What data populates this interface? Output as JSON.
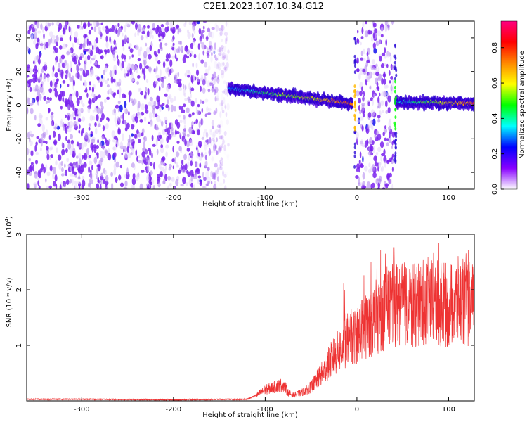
{
  "figure": {
    "title": "C2E1.2023.107.10.34.G12"
  },
  "colors": {
    "snr_line": "#ee3333",
    "spectrogram_low": "#7a22ee",
    "spectrogram_high": "#ee1111",
    "colorbar_stops": [
      "#ffffff",
      "#8800ff",
      "#0000ff",
      "#00ffff",
      "#00ff00",
      "#ffff00",
      "#ff8800",
      "#ff0000",
      "#ff0080"
    ]
  },
  "chart_data": [
    {
      "type": "heatmap",
      "title": "",
      "xlabel": "Height of straight line (km)",
      "ylabel": "Frequency (Hz)",
      "xlim": [
        -360,
        128
      ],
      "ylim": [
        -50,
        50
      ],
      "xticks": [
        -300,
        -200,
        -100,
        0,
        100
      ],
      "yticks": [
        -40,
        -20,
        0,
        20,
        40
      ],
      "colorbar": {
        "label": "Normalized spectral amplitude",
        "range": [
          0,
          0.95
        ],
        "ticks": [
          0.0,
          0.2,
          0.4,
          0.6,
          0.8
        ],
        "colormap": "rainbow"
      },
      "regions": [
        {
          "desc": "noise",
          "x_range": [
            -360,
            -140
          ],
          "freq_range": [
            -50,
            50
          ]
        },
        {
          "desc": "signal trace",
          "x_range": [
            -140,
            -5
          ],
          "freq_start": 10,
          "freq_end": 1
        },
        {
          "desc": "noise",
          "x_range": [
            0,
            40
          ],
          "freq_range": [
            -50,
            50
          ]
        },
        {
          "desc": "signal trace",
          "x_range": [
            42,
            128
          ],
          "freq_start": 2,
          "freq_end": 1
        }
      ]
    },
    {
      "type": "line",
      "title": "",
      "xlabel": "Height of straight line (km)",
      "ylabel": "SNR (10 * v/v)",
      "y_multiplier_label": "(x10",
      "y_multiplier_exp": "4",
      "y_multiplier_close": ")",
      "xlim": [
        -360,
        128
      ],
      "ylim": [
        0,
        3
      ],
      "xticks": [
        -300,
        -200,
        -100,
        0,
        100
      ],
      "yticks": [
        1,
        2,
        3
      ],
      "series": [
        {
          "x": [
            -360,
            -300,
            -200,
            -120,
            -110,
            -100,
            -90,
            -80,
            -75,
            -70,
            -60,
            -50,
            -40,
            -30,
            -20,
            -10,
            0,
            10,
            20,
            30,
            40,
            50,
            60,
            70,
            80,
            90,
            100,
            110,
            120,
            128
          ],
          "values": [
            0.03,
            0.03,
            0.02,
            0.03,
            0.1,
            0.2,
            0.25,
            0.3,
            0.15,
            0.1,
            0.15,
            0.25,
            0.45,
            0.7,
            0.9,
            1.1,
            1.2,
            1.35,
            1.5,
            1.65,
            1.75,
            1.75,
            1.7,
            1.75,
            1.8,
            1.75,
            1.7,
            1.8,
            1.75,
            1.7
          ]
        }
      ]
    }
  ]
}
